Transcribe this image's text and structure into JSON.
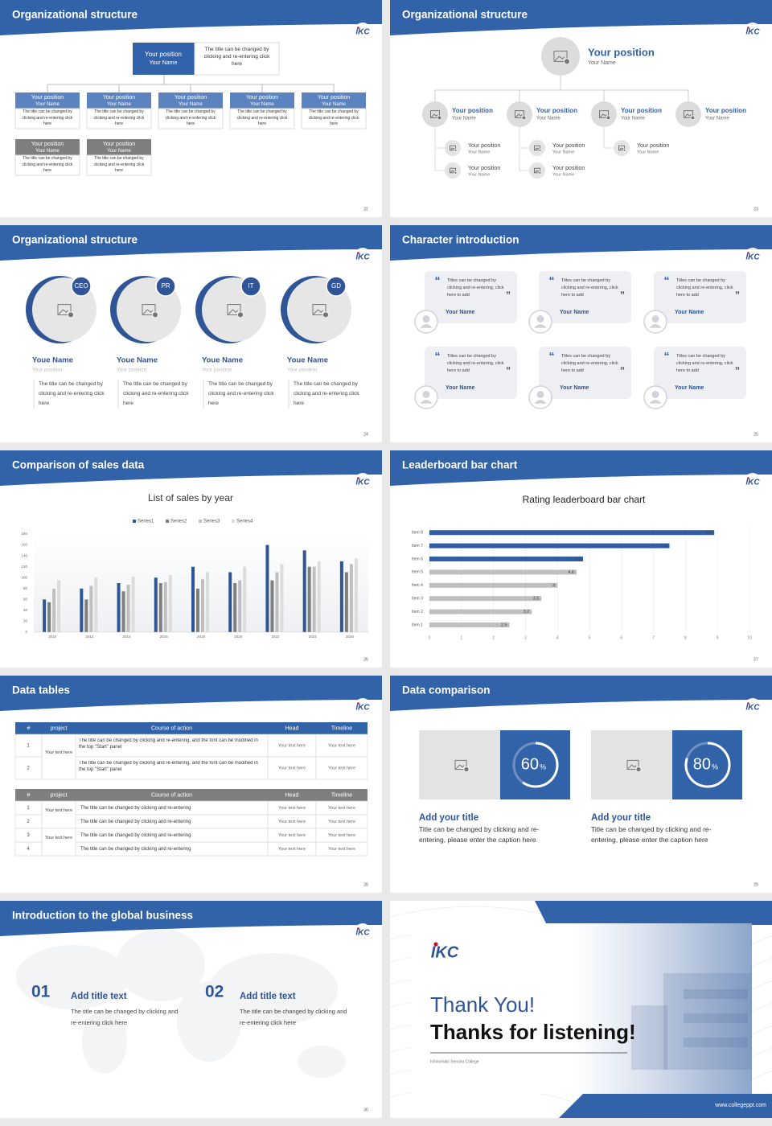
{
  "logo": "IKC",
  "slides": [
    {
      "title": "Organizational structure",
      "page": 22,
      "top": {
        "position": "Your position",
        "name": "Your Name",
        "desc": "The title can be changed by clicking and re-entering click here"
      },
      "boxes": [
        {
          "position": "Your position",
          "name": "Your Name",
          "desc": "The title can be changed by clicking and re-entering click here"
        },
        {
          "position": "Your position",
          "name": "Your Name",
          "desc": "The title can be changed by clicking and re-entering click here"
        },
        {
          "position": "Your position",
          "name": "Your Name",
          "desc": "The title can be changed by clicking and re-entering click here"
        },
        {
          "position": "Your position",
          "name": "Your Name",
          "desc": "The title can be changed by clicking and re-entering click here"
        },
        {
          "position": "Your position",
          "name": "Your Name",
          "desc": "The title can be changed by clicking and re-entering click here"
        },
        {
          "position": "Your position",
          "name": "Your Name",
          "desc": "The title can be changed by clicking and re-entering click here"
        },
        {
          "position": "Your position",
          "name": "Your Name",
          "desc": "The title can be changed by clicking and re-entering click here"
        }
      ]
    },
    {
      "title": "Organizational structure",
      "page": 23,
      "top": {
        "position": "Your position",
        "name": "Your Name"
      },
      "level2": [
        {
          "position": "Your position",
          "name": "Your Name"
        },
        {
          "position": "Your position",
          "name": "Your Name"
        },
        {
          "position": "Your position",
          "name": "Your Name"
        },
        {
          "position": "Your position",
          "name": "Your Name"
        }
      ],
      "level3": [
        {
          "position": "Your position",
          "name": "Your Name"
        },
        {
          "position": "Your position",
          "name": "Your Name"
        },
        {
          "position": "Your position",
          "name": "Your Name"
        },
        {
          "position": "Your position",
          "name": "Your Name"
        },
        {
          "position": "Your position",
          "name": "Your Name"
        }
      ]
    },
    {
      "title": "Organizational structure",
      "page": 24,
      "people": [
        {
          "tag": "CEO",
          "name": "Youe Name",
          "position": "Your position",
          "desc": "The title can be changed by clicking and re-entering click here"
        },
        {
          "tag": "PR",
          "name": "Youe Name",
          "position": "Your position",
          "desc": "The title can be changed by clicking and re-entering click here"
        },
        {
          "tag": "IT",
          "name": "Youe Name",
          "position": "Your position",
          "desc": "The title can be changed by clicking and re-entering click here"
        },
        {
          "tag": "GD",
          "name": "Youe Name",
          "position": "Your position",
          "desc": "The title can be changed by clicking and re-entering click here"
        }
      ]
    },
    {
      "title": "Character introduction",
      "page": 25,
      "quote_open": "“",
      "quote_close": "”",
      "cards": [
        {
          "text": "Titles can be changed by clicking and re-entering, click here to add",
          "name": "Your Name"
        },
        {
          "text": "Titles can be changed by clicking and re-entering, click here to add",
          "name": "Your Name"
        },
        {
          "text": "Titles can be changed by clicking and re-entering, click here to add",
          "name": "Your Name"
        },
        {
          "text": "Titles can be changed by clicking and re-entering, click here to add",
          "name": "Your Name"
        },
        {
          "text": "Titles can be changed by clicking and re-entering, click here to add",
          "name": "Your Name"
        },
        {
          "text": "Titles can be changed by clicking and re-entering, click here to add",
          "name": "Your Name"
        }
      ]
    },
    {
      "title": "Comparison of sales data",
      "page": 26,
      "chart_data": {
        "type": "bar",
        "title": "List of sales by year",
        "categories": [
          "2010",
          "2012",
          "2014",
          "2016",
          "2018",
          "2020",
          "2022",
          "2024",
          "2026"
        ],
        "series": [
          {
            "name": "Series1",
            "color": "#2f5597",
            "values": [
              60,
              80,
              90,
              100,
              120,
              110,
              160,
              150,
              130
            ]
          },
          {
            "name": "Series2",
            "color": "#7f7f7f",
            "values": [
              55,
              60,
              75,
              90,
              80,
              90,
              95,
              120,
              110
            ]
          },
          {
            "name": "Series3",
            "color": "#bfbfbf",
            "values": [
              80,
              85,
              87,
              92,
              97,
              95,
              110,
              120,
              125
            ]
          },
          {
            "name": "Series4",
            "color": "#dcdcdc",
            "values": [
              95,
              100,
              102,
              105,
              110,
              120,
              125,
              130,
              135
            ]
          }
        ],
        "ylim": [
          0,
          180
        ],
        "yticks": [
          0,
          20,
          40,
          60,
          80,
          100,
          120,
          140,
          160,
          180
        ],
        "legend": "top"
      }
    },
    {
      "title": "Leaderboard bar chart",
      "page": 27,
      "chart_data": {
        "type": "barh",
        "title": "Rating leaderboard bar chart",
        "categories": [
          "Item 1",
          "Item 2",
          "Item 3",
          "Item 4",
          "Item 5",
          "Item 6",
          "Item 7",
          "Item 8"
        ],
        "values": [
          2.5,
          3.2,
          3.5,
          4,
          4.6,
          4.8,
          7.5,
          8.9
        ],
        "colors": [
          "#bfbfbf",
          "#bfbfbf",
          "#bfbfbf",
          "#bfbfbf",
          "#bfbfbf",
          "#2f5da6",
          "#2f5da6",
          "#2f5da6"
        ],
        "xlim": [
          0,
          10
        ],
        "xticks": [
          0,
          1,
          2,
          3,
          4,
          5,
          6,
          7,
          8,
          9,
          10
        ],
        "grid": true
      }
    },
    {
      "title": "Data tables",
      "page": 28,
      "tables": [
        {
          "header": [
            "#",
            "project",
            "Course of action",
            "Head",
            "Timeline"
          ],
          "groups": [
            {
              "project": "Your text here",
              "rows": [
                {
                  "no": 1,
                  "course": "The title can be changed by clicking and re-entering, and the font can be modified in the top \"Start\" panel",
                  "head": "Your text here",
                  "timeline": "Your text here"
                },
                {
                  "no": 2,
                  "course": "The title can be changed by clicking and re-entering, and the font can be modified in the top \"Start\" panel",
                  "head": "Your text here",
                  "timeline": "Your text here"
                }
              ]
            }
          ]
        },
        {
          "header": [
            "#",
            "project",
            "Course of action",
            "Head",
            "Timeline"
          ],
          "groups": [
            {
              "project": "Your text here",
              "rows": [
                {
                  "no": 1,
                  "course": "The title can be changed by clicking and re-entering",
                  "head": "Your text here",
                  "timeline": "Your text here"
                },
                {
                  "no": 2,
                  "course": "The title can be changed by clicking and re-entering",
                  "head": "Your text here",
                  "timeline": "Your text here"
                }
              ]
            },
            {
              "project": "Your text here",
              "rows": [
                {
                  "no": 3,
                  "course": "The title can be changed by clicking and re-entering",
                  "head": "Your text here",
                  "timeline": "Your text here"
                },
                {
                  "no": 4,
                  "course": "The title can be changed by clicking and re-entering",
                  "head": "Your text here",
                  "timeline": "Your text here"
                }
              ]
            }
          ]
        }
      ]
    },
    {
      "title": "Data comparison",
      "page": 29,
      "items": [
        {
          "value": 60,
          "unit": "%",
          "title": "Add your title",
          "desc": "Title can be changed by clicking and re-entering, please enter the caption here"
        },
        {
          "value": 80,
          "unit": "%",
          "title": "Add your title",
          "desc": "Title can be changed by clicking and re-entering, please enter the caption here"
        }
      ]
    },
    {
      "title": "Introduction to the global business",
      "page": 30,
      "items": [
        {
          "number": "01",
          "title": "Add title text",
          "desc": "The title can be changed by clicking and re-entering click here"
        },
        {
          "number": "02",
          "title": "Add title text",
          "desc": "The title can be changed by clicking and re-entering click here"
        }
      ]
    },
    {
      "thanks": "Thank You!",
      "subtitle": "Thanks for listening!",
      "college": "Ishinomaki Senshu College",
      "url": "www.collegeppt.com"
    }
  ]
}
